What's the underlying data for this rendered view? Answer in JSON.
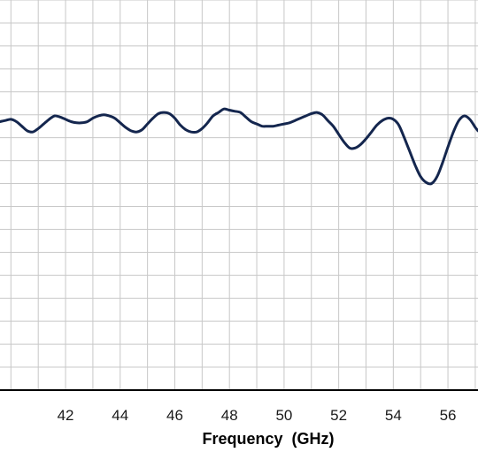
{
  "chart_data": {
    "type": "line",
    "xlabel": "Frequency  (GHz)",
    "ylabel": "",
    "title": "",
    "xlim": [
      39.6,
      57.1
    ],
    "ylim": [
      -17,
      0
    ],
    "x_ticks": [
      "42",
      "44",
      "46",
      "48",
      "50",
      "52",
      "54",
      "56"
    ],
    "x_tick_values": [
      42,
      44,
      46,
      48,
      50,
      52,
      54,
      56
    ],
    "grid": true,
    "colors": {
      "line": "#14264e",
      "grid": "#c8c8c8",
      "axis": "#000000"
    },
    "series": [
      {
        "x": [
          39.6,
          39.8,
          40.0,
          40.2,
          40.4,
          40.6,
          40.8,
          41.0,
          41.2,
          41.4,
          41.6,
          41.8,
          42.0,
          42.2,
          42.4,
          42.6,
          42.8,
          43.0,
          43.2,
          43.4,
          43.6,
          43.8,
          44.0,
          44.2,
          44.4,
          44.6,
          44.8,
          45.0,
          45.2,
          45.4,
          45.6,
          45.8,
          46.0,
          46.2,
          46.4,
          46.6,
          46.8,
          47.0,
          47.2,
          47.4,
          47.6,
          47.8,
          48.0,
          48.2,
          48.4,
          48.6,
          48.8,
          49.0,
          49.2,
          49.4,
          49.6,
          49.8,
          50.0,
          50.2,
          50.4,
          50.6,
          50.8,
          51.0,
          51.2,
          51.4,
          51.6,
          51.8,
          52.0,
          52.2,
          52.4,
          52.6,
          52.8,
          53.0,
          53.2,
          53.4,
          53.6,
          53.8,
          54.0,
          54.2,
          54.4,
          54.6,
          54.8,
          55.0,
          55.2,
          55.4,
          55.6,
          55.8,
          56.0,
          56.2,
          56.4,
          56.6,
          56.8,
          57.0,
          57.1
        ],
        "y": [
          -5.3,
          -5.25,
          -5.2,
          -5.3,
          -5.5,
          -5.7,
          -5.75,
          -5.6,
          -5.4,
          -5.2,
          -5.05,
          -5.1,
          -5.2,
          -5.3,
          -5.35,
          -5.35,
          -5.3,
          -5.15,
          -5.05,
          -5.0,
          -5.05,
          -5.15,
          -5.35,
          -5.55,
          -5.7,
          -5.75,
          -5.65,
          -5.4,
          -5.15,
          -4.95,
          -4.9,
          -4.95,
          -5.15,
          -5.45,
          -5.65,
          -5.75,
          -5.75,
          -5.6,
          -5.35,
          -5.05,
          -4.9,
          -4.75,
          -4.8,
          -4.85,
          -4.9,
          -5.1,
          -5.3,
          -5.4,
          -5.5,
          -5.5,
          -5.5,
          -5.45,
          -5.4,
          -5.35,
          -5.25,
          -5.15,
          -5.05,
          -4.95,
          -4.9,
          -5.0,
          -5.25,
          -5.5,
          -5.85,
          -6.2,
          -6.45,
          -6.45,
          -6.3,
          -6.05,
          -5.75,
          -5.45,
          -5.25,
          -5.15,
          -5.2,
          -5.45,
          -6.0,
          -6.6,
          -7.2,
          -7.7,
          -7.95,
          -8.0,
          -7.7,
          -7.1,
          -6.4,
          -5.75,
          -5.25,
          -5.05,
          -5.2,
          -5.55,
          -5.7
        ]
      }
    ]
  }
}
